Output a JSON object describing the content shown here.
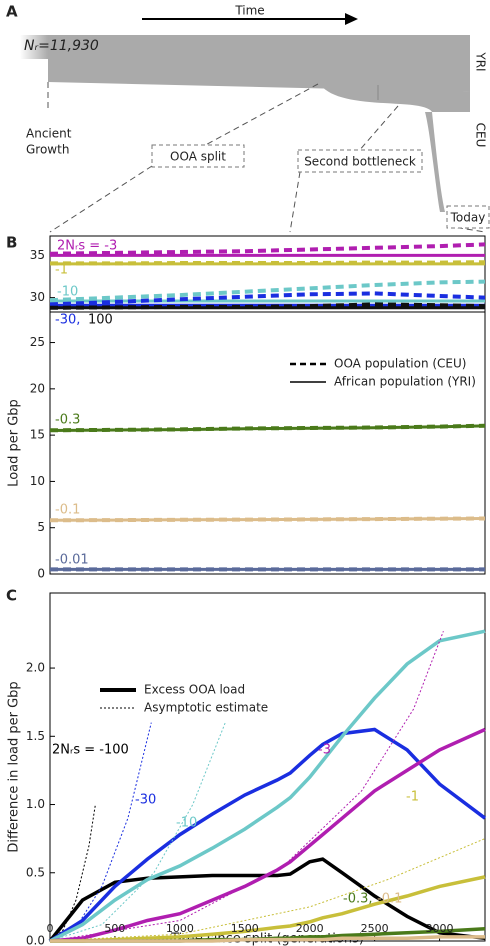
{
  "diagram": {
    "panel": "A",
    "time": "Time",
    "population": "Nᵣ=11,930",
    "yri": "YRI",
    "ceu": "CEU",
    "ancient": [
      "Ancient",
      "Growth"
    ],
    "ooa_split": "OOA split",
    "second_bottleneck": "Second bottleneck",
    "today": "Today"
  },
  "chart_data": [
    {
      "type": "line",
      "panel": "B",
      "x": [
        0,
        500,
        1000,
        1500,
        2000,
        2500,
        3000,
        3350
      ],
      "xlim": [
        0,
        3350
      ],
      "ylim": [
        28.3,
        37.3
      ],
      "yticks": [
        30,
        35
      ],
      "series": [
        {
          "name": "2Nᵣs = -3",
          "color": "#b01eb0",
          "values": [
            35.0,
            35.0,
            35.0,
            35.0,
            35.0,
            35.0,
            35.0,
            35.0
          ],
          "ceu_values": [
            35.2,
            35.3,
            35.4,
            35.5,
            35.7,
            35.9,
            36.1,
            36.3
          ]
        },
        {
          "name": "-1",
          "color": "#c8bf3a",
          "values": [
            34.0,
            34.0,
            34.0,
            34.0,
            34.0,
            34.0,
            34.0,
            34.0
          ],
          "ceu_values": [
            34.05,
            34.05,
            34.1,
            34.1,
            34.1,
            34.15,
            34.15,
            34.2
          ]
        },
        {
          "name": "-10",
          "color": "#6cc8c8",
          "values": [
            29.6,
            29.6,
            29.6,
            29.6,
            29.6,
            29.6,
            29.6,
            29.6
          ],
          "ceu_values": [
            29.7,
            30.0,
            30.3,
            30.7,
            31.1,
            31.5,
            31.8,
            31.9
          ]
        },
        {
          "name": "-30,",
          "color": "#1a2ee0",
          "values": [
            29.1,
            29.1,
            29.1,
            29.1,
            29.1,
            29.1,
            29.1,
            29.1
          ],
          "ceu_values": [
            29.2,
            29.5,
            29.8,
            30.1,
            30.4,
            30.5,
            30.2,
            30.0
          ]
        },
        {
          "name": "100",
          "color": "#111111",
          "values": [
            28.8,
            28.8,
            28.8,
            28.8,
            28.8,
            28.8,
            28.8,
            28.8
          ],
          "ceu_values": [
            28.8,
            28.85,
            28.9,
            28.9,
            29.0,
            29.2,
            29.1,
            29.0
          ]
        }
      ]
    },
    {
      "type": "line",
      "ylabel": "Load per Gbp",
      "x": [
        0,
        500,
        1000,
        1500,
        2000,
        2500,
        3000,
        3350
      ],
      "xlim": [
        0,
        3350
      ],
      "ylim": [
        0,
        28.3
      ],
      "yticks": [
        0,
        5,
        10,
        15,
        20,
        25
      ],
      "legend": [
        "OOA population (CEU)",
        "African population (YRI)"
      ],
      "series": [
        {
          "name": "-0.3",
          "color": "#4a7a1a",
          "values": [
            15.5,
            15.55,
            15.6,
            15.7,
            15.75,
            15.8,
            15.9,
            16.0
          ],
          "ceu_values": [
            15.52,
            15.57,
            15.62,
            15.72,
            15.77,
            15.82,
            15.92,
            16.02
          ]
        },
        {
          "name": "-0.1",
          "color": "#dcbc8a",
          "values": [
            5.8,
            5.82,
            5.85,
            5.88,
            5.9,
            5.93,
            5.97,
            6.0
          ],
          "ceu_values": [
            5.8,
            5.82,
            5.85,
            5.88,
            5.9,
            5.93,
            5.97,
            6.0
          ]
        },
        {
          "name": "-0.01",
          "color": "#5a6a9a",
          "values": [
            0.5,
            0.5,
            0.5,
            0.5,
            0.5,
            0.5,
            0.5,
            0.5
          ],
          "ceu_values": [
            0.5,
            0.5,
            0.5,
            0.5,
            0.5,
            0.5,
            0.5,
            0.5
          ]
        }
      ]
    },
    {
      "type": "line",
      "panel": "C",
      "xlabel": "Time since split (generations)",
      "ylabel": "Difference in load per Gbp",
      "x": [
        0,
        250,
        500,
        750,
        1000,
        1250,
        1500,
        1750,
        1850,
        2000,
        2100,
        2250,
        2500,
        2750,
        3000,
        3350
      ],
      "xlim": [
        0,
        3350
      ],
      "xticks": [
        0,
        500,
        1000,
        1500,
        2000,
        2500,
        3000
      ],
      "ylim": [
        0,
        2.55
      ],
      "yticks": [
        {
          "value": 0,
          "label": "0.0"
        },
        0.5,
        {
          "value": 1,
          "label": "1.0"
        },
        1.5,
        {
          "value": 2,
          "label": "2.0"
        }
      ],
      "legend": [
        "Excess OOA load",
        "Asymptotic estimate"
      ],
      "series": [
        {
          "name": "2Nᵣs = -100",
          "color": "#000000",
          "values": [
            0,
            0.3,
            0.43,
            0.46,
            0.47,
            0.48,
            0.48,
            0.48,
            0.49,
            0.58,
            0.6,
            0.5,
            0.33,
            0.18,
            0.06,
            0.02
          ],
          "asymptotic": {
            "x": [
              0,
              100,
              200,
              300,
              350
            ],
            "values": [
              0,
              0.08,
              0.3,
              0.7,
              1.0
            ]
          }
        },
        {
          "name": "-30",
          "color": "#1a2ee0",
          "values": [
            0,
            0.15,
            0.4,
            0.6,
            0.78,
            0.93,
            1.07,
            1.18,
            1.23,
            1.36,
            1.44,
            1.52,
            1.55,
            1.4,
            1.15,
            0.9
          ],
          "asymptotic": {
            "x": [
              0,
              200,
              400,
              600,
              780
            ],
            "values": [
              0,
              0.1,
              0.4,
              0.9,
              1.6
            ]
          }
        },
        {
          "name": "-10",
          "color": "#6cc8c8",
          "values": [
            0,
            0.12,
            0.3,
            0.45,
            0.55,
            0.68,
            0.82,
            0.98,
            1.05,
            1.2,
            1.32,
            1.5,
            1.78,
            2.03,
            2.2,
            2.27
          ],
          "asymptotic": {
            "x": [
              0,
              400,
              800,
              1100,
              1350
            ],
            "values": [
              0,
              0.12,
              0.5,
              1.0,
              1.6
            ]
          }
        },
        {
          "name": "-3",
          "color": "#b01eb0",
          "values": [
            0,
            0.02,
            0.08,
            0.15,
            0.2,
            0.3,
            0.4,
            0.52,
            0.58,
            0.7,
            0.78,
            0.9,
            1.1,
            1.25,
            1.4,
            1.55
          ],
          "asymptotic": {
            "x": [
              0,
              1000,
              1800,
              2400,
              2800,
              3030
            ],
            "values": [
              0,
              0.15,
              0.55,
              1.1,
              1.7,
              2.27
            ]
          }
        },
        {
          "name": "-1",
          "color": "#c8bf3a",
          "values": [
            0,
            0,
            0.01,
            0.02,
            0.03,
            0.05,
            0.07,
            0.1,
            0.11,
            0.14,
            0.17,
            0.2,
            0.27,
            0.33,
            0.4,
            0.47
          ],
          "asymptotic": {
            "x": [
              0,
              1000,
              2000,
              2600,
              3350
            ],
            "values": [
              0,
              0.05,
              0.25,
              0.45,
              0.75
            ]
          }
        },
        {
          "name": "-0.3,",
          "color": "#4a7a1a",
          "values": [
            0,
            0,
            0,
            0,
            0,
            0.01,
            0.01,
            0.02,
            0.02,
            0.03,
            0.03,
            0.04,
            0.05,
            0.06,
            0.07,
            0.09
          ],
          "asymptotic": {
            "x": [
              0,
              1500,
              3000,
              3350
            ],
            "values": [
              0,
              0.02,
              0.07,
              0.09
            ]
          }
        },
        {
          "name": "-0.1",
          "color": "#dcbc8a",
          "values": [
            0,
            0,
            0,
            0,
            0,
            0,
            0.01,
            0.01,
            0.01,
            0.01,
            0.01,
            0.02,
            0.02,
            0.02,
            0.03,
            0.03
          ]
        }
      ]
    }
  ]
}
